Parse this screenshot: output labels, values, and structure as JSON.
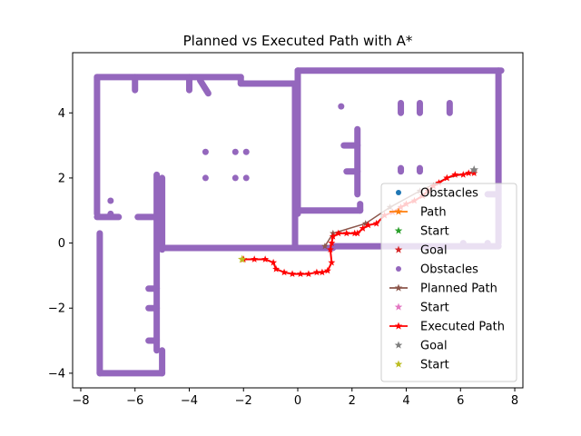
{
  "chart_data": {
    "type": "scatter",
    "title": "Planned vs Executed Path with A*",
    "xlabel": "",
    "ylabel": "",
    "xlim": [
      -8.3,
      8.3
    ],
    "ylim": [
      -4.45,
      5.85
    ],
    "xticks": [
      -8,
      -6,
      -4,
      -2,
      0,
      2,
      4,
      6,
      8
    ],
    "yticks": [
      -4,
      -2,
      0,
      2,
      4
    ],
    "grid": false,
    "legend_position": "lower right",
    "legend": [
      {
        "label": "Obstacles",
        "marker": "dot",
        "color": "#1f77b4"
      },
      {
        "label": "Path",
        "marker": "line-star",
        "color": "#ff7f0e"
      },
      {
        "label": "Start",
        "marker": "star",
        "color": "#2ca02c"
      },
      {
        "label": "Goal",
        "marker": "star",
        "color": "#d62728"
      },
      {
        "label": "Obstacles",
        "marker": "dot",
        "color": "#9467bd"
      },
      {
        "label": "Planned Path",
        "marker": "line-star",
        "color": "#8c564b"
      },
      {
        "label": "Start",
        "marker": "star",
        "color": "#e377c2"
      },
      {
        "label": "Executed Path",
        "marker": "line-star",
        "color": "#ff0000"
      },
      {
        "label": "Goal",
        "marker": "star",
        "color": "#7f7f7f"
      },
      {
        "label": "Start",
        "marker": "star",
        "color": "#bcbd22"
      }
    ],
    "obstacles": {
      "color": "#9467bd",
      "segments": [
        [
          [
            -7.4,
            5.1
          ],
          [
            -7.4,
            0.9
          ]
        ],
        [
          [
            -7.3,
            0.3
          ],
          [
            -7.3,
            -4.0
          ]
        ],
        [
          [
            -7.3,
            -4.0
          ],
          [
            -5.0,
            -4.0
          ]
        ],
        [
          [
            -5.0,
            -4.0
          ],
          [
            -5.0,
            -3.3
          ]
        ],
        [
          [
            -5.2,
            -3.3
          ],
          [
            -5.2,
            2.1
          ]
        ],
        [
          [
            -5.0,
            2.0
          ],
          [
            -5.0,
            -0.2
          ]
        ],
        [
          [
            -7.4,
            5.1
          ],
          [
            -2.1,
            5.1
          ]
        ],
        [
          [
            -2.1,
            5.1
          ],
          [
            -2.1,
            4.9
          ]
        ],
        [
          [
            -2.1,
            4.9
          ],
          [
            -0.1,
            4.9
          ]
        ],
        [
          [
            -0.1,
            4.9
          ],
          [
            -0.1,
            -0.1
          ]
        ],
        [
          [
            -5.0,
            -0.15
          ],
          [
            1.3,
            -0.15
          ]
        ],
        [
          [
            0.0,
            5.3
          ],
          [
            7.5,
            5.3
          ]
        ],
        [
          [
            0.0,
            5.3
          ],
          [
            0.0,
            0.9
          ]
        ],
        [
          [
            0.0,
            1.0
          ],
          [
            2.3,
            1.0
          ]
        ],
        [
          [
            2.3,
            1.0
          ],
          [
            2.3,
            1.2
          ]
        ],
        [
          [
            2.2,
            1.5
          ],
          [
            2.2,
            3.5
          ]
        ],
        [
          [
            2.2,
            3.0
          ],
          [
            1.7,
            3.0
          ]
        ],
        [
          [
            1.8,
            2.2
          ],
          [
            2.2,
            2.2
          ]
        ],
        [
          [
            1.3,
            -0.1
          ],
          [
            7.4,
            -0.1
          ]
        ],
        [
          [
            7.4,
            5.3
          ],
          [
            7.4,
            0.0
          ]
        ],
        [
          [
            7.4,
            1.5
          ],
          [
            7.0,
            1.5
          ]
        ],
        [
          [
            -7.4,
            0.8
          ],
          [
            -6.6,
            0.8
          ]
        ],
        [
          [
            -5.9,
            0.8
          ],
          [
            -5.2,
            0.8
          ]
        ],
        [
          [
            -6.0,
            5.1
          ],
          [
            -6.0,
            4.7
          ]
        ],
        [
          [
            -4.0,
            5.1
          ],
          [
            -4.0,
            4.7
          ]
        ],
        [
          [
            -3.6,
            5.0
          ],
          [
            -3.3,
            4.6
          ]
        ],
        [
          [
            -5.5,
            -1.4
          ],
          [
            -5.2,
            -1.4
          ]
        ],
        [
          [
            -5.5,
            -2.0
          ],
          [
            -5.2,
            -2.0
          ]
        ],
        [
          [
            -5.5,
            -3.0
          ],
          [
            -5.2,
            -3.0
          ]
        ],
        [
          [
            3.8,
            4.3
          ],
          [
            3.8,
            4.0
          ]
        ],
        [
          [
            4.5,
            4.3
          ],
          [
            4.5,
            4.0
          ]
        ],
        [
          [
            5.6,
            4.3
          ],
          [
            5.6,
            4.0
          ]
        ],
        [
          [
            3.8,
            2.3
          ],
          [
            3.8,
            2.2
          ]
        ],
        [
          [
            4.5,
            2.3
          ],
          [
            4.5,
            2.2
          ]
        ]
      ],
      "points": [
        [
          -3.4,
          2.8
        ],
        [
          -3.4,
          2.0
        ],
        [
          -2.3,
          2.8
        ],
        [
          -2.3,
          2.0
        ],
        [
          -1.9,
          2.8
        ],
        [
          -1.9,
          2.0
        ],
        [
          6.1,
          0.0
        ],
        [
          7.0,
          0.0
        ],
        [
          1.6,
          4.2
        ],
        [
          -6.9,
          0.9
        ],
        [
          -6.9,
          1.3
        ]
      ]
    },
    "planned_path": {
      "color": "#8c564b",
      "points": [
        [
          1.0,
          -0.1
        ],
        [
          1.3,
          0.3
        ],
        [
          2.5,
          0.6
        ],
        [
          3.4,
          1.1
        ],
        [
          4.5,
          1.6
        ],
        [
          5.5,
          2.0
        ],
        [
          6.5,
          2.2
        ]
      ]
    },
    "executed_path": {
      "color": "#ff0000",
      "points": [
        [
          -2.0,
          -0.5
        ],
        [
          -1.6,
          -0.5
        ],
        [
          -1.2,
          -0.5
        ],
        [
          -0.9,
          -0.6
        ],
        [
          -0.8,
          -0.8
        ],
        [
          -0.5,
          -0.9
        ],
        [
          -0.2,
          -0.95
        ],
        [
          0.1,
          -0.95
        ],
        [
          0.4,
          -0.95
        ],
        [
          0.7,
          -0.9
        ],
        [
          0.9,
          -0.9
        ],
        [
          1.1,
          -0.85
        ],
        [
          1.25,
          -0.6
        ],
        [
          1.2,
          -0.2
        ],
        [
          1.25,
          0.0
        ],
        [
          1.3,
          0.2
        ],
        [
          1.5,
          0.3
        ],
        [
          1.8,
          0.3
        ],
        [
          2.1,
          0.3
        ],
        [
          2.2,
          0.3
        ],
        [
          2.4,
          0.45
        ],
        [
          2.6,
          0.55
        ],
        [
          2.9,
          0.6
        ],
        [
          3.2,
          0.85
        ],
        [
          3.5,
          0.95
        ],
        [
          3.8,
          1.1
        ],
        [
          4.0,
          1.2
        ],
        [
          4.3,
          1.3
        ],
        [
          4.6,
          1.45
        ],
        [
          4.8,
          1.6
        ],
        [
          5.0,
          1.75
        ],
        [
          5.2,
          1.85
        ],
        [
          5.5,
          2.0
        ],
        [
          5.8,
          2.1
        ],
        [
          6.1,
          2.1
        ],
        [
          6.3,
          2.15
        ],
        [
          6.5,
          2.15
        ]
      ]
    },
    "start": {
      "x": -2.05,
      "y": -0.5,
      "color": "#bcbd22"
    },
    "goal": {
      "x": 6.5,
      "y": 2.25,
      "color": "#7f7f7f"
    }
  }
}
